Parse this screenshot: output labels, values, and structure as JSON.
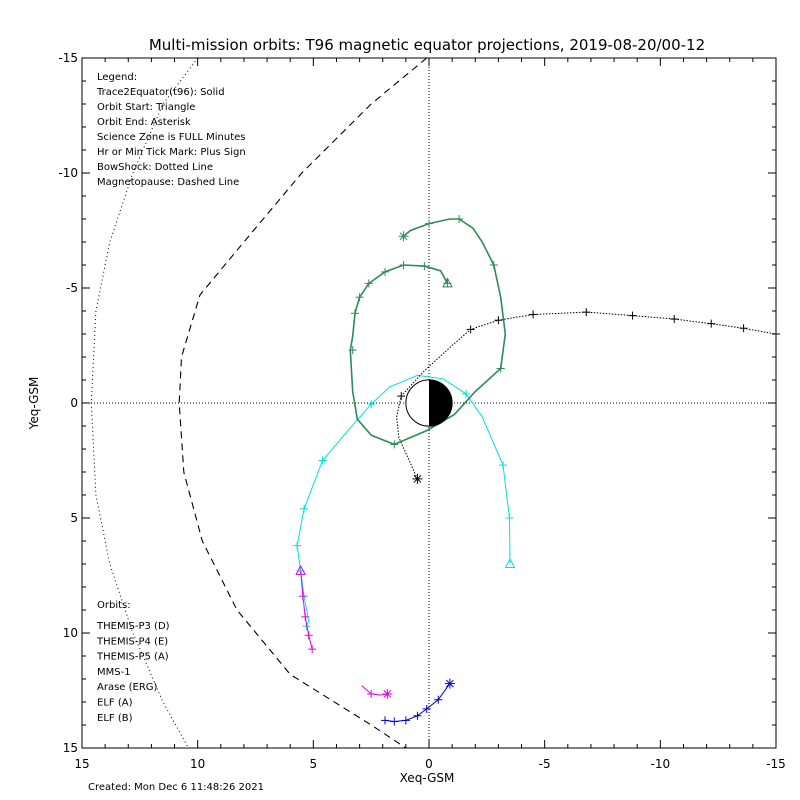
{
  "title": "Multi-mission orbits: T96 magnetic equator projections, 2019-08-20/00-12",
  "footer": "Created: Mon Dec  6 11:48:26 2021",
  "chart_data": {
    "type": "line",
    "xlabel": "Xeq-GSM",
    "ylabel": "Yeq-GSM",
    "xlim": [
      15,
      -15
    ],
    "ylim": [
      -15,
      15
    ],
    "x_reversed": true,
    "y_increases_downward": true,
    "xticks": [
      15,
      10,
      5,
      0,
      -5,
      -10,
      -15
    ],
    "yticks": [
      -15,
      -10,
      -5,
      0,
      5,
      10,
      15
    ],
    "xtick_labels": [
      "15",
      "10",
      "5",
      "0",
      "-5",
      "-10",
      "-15"
    ],
    "ytick_labels": [
      "-15",
      "-10",
      "-5",
      "0",
      "5",
      "10",
      "15"
    ],
    "legend_lines": [
      "Legend:",
      "Trace2Equator(t96): Solid",
      "Orbit Start: Triangle",
      "Orbit End: Asterisk",
      "Science Zone is FULL Minutes",
      "Hr or Min Tick Mark: Plus Sign",
      "BowShock: Dotted Line",
      "Magnetopause: Dashed Line"
    ],
    "orbits_title": "Orbits:",
    "orbits_legend": [
      {
        "label": "THEMIS-P3 (D)",
        "color": "#00e0e0"
      },
      {
        "label": "THEMIS-P4 (E)",
        "color": "#0000c8"
      },
      {
        "label": "THEMIS-P5 (A)",
        "color": "#e000e0"
      },
      {
        "label": "MMS-1",
        "color": "#000000"
      },
      {
        "label": "Arase (ERG)",
        "color": "#2e8b57"
      },
      {
        "label": "ELF (A)",
        "color": "#1e8fff"
      },
      {
        "label": "ELF (B)",
        "color": "#e00000"
      }
    ],
    "bow_shock": [
      [
        10,
        -15
      ],
      [
        11.5,
        -13
      ],
      [
        12.8,
        -10
      ],
      [
        13.8,
        -7
      ],
      [
        14.4,
        -4
      ],
      [
        14.6,
        0
      ],
      [
        14.4,
        4
      ],
      [
        13.8,
        7
      ],
      [
        12.8,
        10
      ],
      [
        11.5,
        13
      ],
      [
        10.4,
        15
      ]
    ],
    "magnetopause": [
      [
        0.1,
        -15
      ],
      [
        2.5,
        -13
      ],
      [
        5.5,
        -10
      ],
      [
        8,
        -7
      ],
      [
        9.9,
        -4.7
      ],
      [
        10.7,
        -2
      ],
      [
        10.8,
        0
      ],
      [
        10.6,
        3
      ],
      [
        9.8,
        6
      ],
      [
        8.3,
        9
      ],
      [
        6,
        11.8
      ],
      [
        2.5,
        14
      ],
      [
        1,
        15
      ]
    ],
    "series": [
      {
        "name": "THEMIS-P3 (D)",
        "color": "#00e0e0",
        "points": [
          [
            -3.5,
            7.0
          ],
          [
            -3.48,
            5.0
          ],
          [
            -3.2,
            2.7
          ],
          [
            -2.3,
            0.6
          ],
          [
            -1.6,
            -0.4
          ],
          [
            -0.6,
            -1.05
          ],
          [
            0.5,
            -1.2
          ],
          [
            1.7,
            -0.7
          ],
          [
            2.5,
            0.05
          ],
          [
            3.5,
            1.2
          ],
          [
            4.6,
            2.5
          ],
          [
            5.4,
            4.6
          ],
          [
            5.7,
            6.2
          ],
          [
            5.55,
            7.3
          ],
          [
            5.4,
            8.4
          ],
          [
            5.2,
            9.5
          ],
          [
            5.3,
            9.7
          ]
        ],
        "ticks": [
          [
            -3.48,
            5.0
          ],
          [
            -3.2,
            2.7
          ],
          [
            -1.6,
            -0.4
          ],
          [
            2.5,
            0.05
          ],
          [
            4.6,
            2.5
          ],
          [
            5.4,
            4.6
          ],
          [
            5.7,
            6.2
          ],
          [
            5.55,
            7.3
          ],
          [
            5.3,
            9.7
          ]
        ],
        "start": [
          -3.5,
          7.0
        ],
        "end": null
      },
      {
        "name": "THEMIS-P4 (E)",
        "color": "#0000c8",
        "points": [
          [
            1.9,
            13.8
          ],
          [
            1.5,
            13.85
          ],
          [
            1.0,
            13.8
          ],
          [
            0.5,
            13.6
          ],
          [
            0.1,
            13.3
          ],
          [
            -0.4,
            12.9
          ],
          [
            -0.9,
            12.2
          ]
        ],
        "ticks": [
          [
            1.9,
            13.8
          ],
          [
            1.5,
            13.85
          ],
          [
            1.0,
            13.8
          ],
          [
            0.5,
            13.6
          ],
          [
            0.1,
            13.3
          ],
          [
            -0.4,
            12.9
          ]
        ],
        "start": null,
        "end": [
          -0.9,
          12.2
        ]
      },
      {
        "name": "THEMIS-P5 (A)",
        "color": "#e000e0",
        "points": [
          [
            5.55,
            7.3
          ],
          [
            5.45,
            8.4
          ],
          [
            5.35,
            9.3
          ],
          [
            5.2,
            10.1
          ],
          [
            5.05,
            10.7
          ]
        ],
        "ticks": [
          [
            5.45,
            8.4
          ],
          [
            5.35,
            9.3
          ],
          [
            5.2,
            10.1
          ],
          [
            5.05,
            10.7
          ]
        ],
        "start": [
          5.55,
          7.3
        ],
        "end": null,
        "extra_points": [
          [
            2.9,
            12.3
          ],
          [
            2.5,
            12.65
          ],
          [
            2.1,
            12.7
          ],
          [
            1.8,
            12.65
          ]
        ],
        "extra_end": [
          1.8,
          12.65
        ],
        "extra_ticks": [
          [
            2.5,
            12.65
          ]
        ]
      },
      {
        "name": "MMS-1",
        "color": "#000000",
        "points": [
          [
            0.5,
            3.3
          ],
          [
            0.9,
            2.4
          ],
          [
            1.3,
            1.5
          ],
          [
            1.4,
            0.6
          ],
          [
            1.2,
            -0.3
          ],
          [
            0.2,
            -1.4
          ],
          [
            -1.0,
            -2.5
          ],
          [
            -1.8,
            -3.2
          ],
          [
            -3,
            -3.6
          ],
          [
            -4.5,
            -3.85
          ],
          [
            -6.8,
            -3.95
          ],
          [
            -8.8,
            -3.8
          ],
          [
            -10.6,
            -3.65
          ],
          [
            -12.2,
            -3.45
          ],
          [
            -13.6,
            -3.25
          ],
          [
            -15,
            -3.0
          ]
        ],
        "ticks": [
          [
            1.2,
            -0.3
          ],
          [
            -1.8,
            -3.2
          ],
          [
            -3,
            -3.6
          ],
          [
            -4.5,
            -3.85
          ],
          [
            -6.8,
            -3.95
          ],
          [
            -8.8,
            -3.8
          ],
          [
            -10.6,
            -3.65
          ],
          [
            -12.2,
            -3.45
          ],
          [
            -13.6,
            -3.25
          ],
          [
            -15,
            -3.0
          ]
        ],
        "start": null,
        "end": [
          0.5,
          3.3
        ]
      },
      {
        "name": "Arase (ERG)",
        "color": "#2e8b57",
        "points": [
          [
            -0.8,
            -5.2
          ],
          [
            -0.5,
            -5.75
          ],
          [
            0.2,
            -5.95
          ],
          [
            1.1,
            -6.0
          ],
          [
            1.9,
            -5.7
          ],
          [
            2.6,
            -5.2
          ],
          [
            3.0,
            -4.6
          ],
          [
            3.2,
            -3.9
          ],
          [
            3.3,
            -2.9
          ],
          [
            3.4,
            -2.3
          ],
          [
            3.3,
            -0.5
          ],
          [
            3.1,
            0.7
          ],
          [
            2.5,
            1.4
          ],
          [
            1.5,
            1.8
          ],
          [
            0.1,
            1.2
          ],
          [
            -1.1,
            0.5
          ],
          [
            -2.0,
            -0.5
          ],
          [
            -3.1,
            -1.5
          ],
          [
            -3.3,
            -3.0
          ],
          [
            -3.1,
            -4.6
          ],
          [
            -2.8,
            -6.0
          ],
          [
            -2.3,
            -7.0
          ],
          [
            -1.9,
            -7.6
          ],
          [
            -1.3,
            -8.0
          ],
          [
            -0.9,
            -8.0
          ],
          [
            0,
            -7.8
          ],
          [
            0.8,
            -7.5
          ],
          [
            1.1,
            -7.25
          ]
        ],
        "ticks": [
          [
            -0.8,
            -5.2
          ],
          [
            0.2,
            -5.95
          ],
          [
            1.1,
            -6.0
          ],
          [
            1.9,
            -5.7
          ],
          [
            2.6,
            -5.2
          ],
          [
            3.0,
            -4.6
          ],
          [
            3.2,
            -3.9
          ],
          [
            3.3,
            -2.3
          ],
          [
            1.5,
            1.8
          ],
          [
            -3.1,
            -1.5
          ],
          [
            -2.8,
            -6.0
          ],
          [
            -1.3,
            -8.0
          ],
          [
            0,
            -7.8
          ]
        ],
        "start": [
          -0.8,
          -5.2
        ],
        "end": [
          1.1,
          -7.25
        ]
      }
    ]
  }
}
